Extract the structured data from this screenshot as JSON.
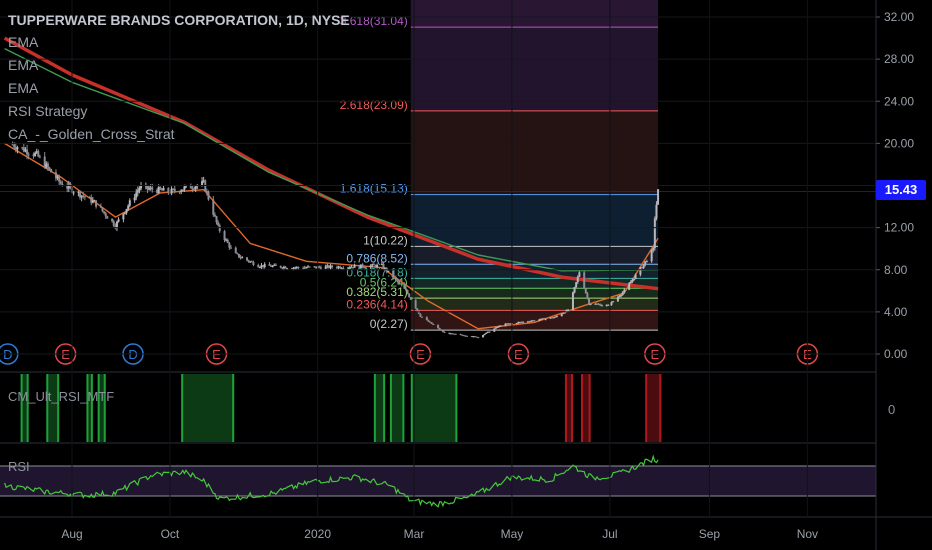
{
  "header": {
    "title": "TUPPERWARE BRANDS CORPORATION, 1D, NYSE",
    "indicators": [
      "EMA",
      "EMA",
      "EMA",
      "RSI Strategy",
      "CA_-_Golden_Cross_Strat"
    ]
  },
  "panes": {
    "oscillator_label": "CM_Ult_RSI_MTF",
    "oscillator_tick": "0",
    "rsi_label": "RSI"
  },
  "last_price": "15.43",
  "colors": {
    "background": "#000000",
    "candles": "#b7b7bd",
    "ema_long": "#c8302a",
    "ema_mid": "#3e9a55",
    "ema_short": "#e0692b",
    "rsi_line": "#46c83c",
    "rsi_band": "#271a3a",
    "hist_green": "#1ea03a",
    "hist_red": "#b2171b",
    "price_badge": "#1a1aff"
  },
  "chart_data": {
    "type": "candlestick",
    "symbol": "TUPPERWARE BRANDS CORPORATION",
    "interval": "1D",
    "exchange": "NYSE",
    "y_ticks": [
      "32.00",
      "28.00",
      "24.00",
      "20.00",
      "16.00",
      "12.00",
      "8.00",
      "4.00",
      "0.00"
    ],
    "ylim": [
      0,
      32
    ],
    "x_ticks": [
      "Aug",
      "Oct",
      "2020",
      "Mar",
      "May",
      "Jul",
      "Sep",
      "Nov"
    ],
    "last_price": 15.43,
    "price_path": [
      {
        "date": "2019-06-25",
        "close": 19.9
      },
      {
        "date": "2019-07-10",
        "close": 18.9
      },
      {
        "date": "2019-07-25",
        "close": 16.2
      },
      {
        "date": "2019-08-15",
        "close": 14.4
      },
      {
        "date": "2019-08-28",
        "close": 12.2
      },
      {
        "date": "2019-09-12",
        "close": 15.8
      },
      {
        "date": "2019-10-01",
        "close": 15.4
      },
      {
        "date": "2019-10-22",
        "close": 16.2
      },
      {
        "date": "2019-10-31",
        "close": 12.0
      },
      {
        "date": "2019-11-10",
        "close": 9.5
      },
      {
        "date": "2019-11-25",
        "close": 8.4
      },
      {
        "date": "2019-12-20",
        "close": 8.2
      },
      {
        "date": "2020-01-20",
        "close": 8.3
      },
      {
        "date": "2020-02-10",
        "close": 8.4
      },
      {
        "date": "2020-02-25",
        "close": 6.0
      },
      {
        "date": "2020-03-05",
        "close": 3.6
      },
      {
        "date": "2020-03-20",
        "close": 2.0
      },
      {
        "date": "2020-04-10",
        "close": 1.6
      },
      {
        "date": "2020-04-25",
        "close": 2.8
      },
      {
        "date": "2020-05-15",
        "close": 3.2
      },
      {
        "date": "2020-05-28",
        "close": 3.5
      },
      {
        "date": "2020-06-05",
        "close": 4.2
      },
      {
        "date": "2020-06-12",
        "close": 7.8
      },
      {
        "date": "2020-06-18",
        "close": 4.8
      },
      {
        "date": "2020-06-30",
        "close": 4.6
      },
      {
        "date": "2020-07-10",
        "close": 6.0
      },
      {
        "date": "2020-07-22",
        "close": 8.5
      },
      {
        "date": "2020-07-28",
        "close": 9.9
      },
      {
        "date": "2020-07-29",
        "close": 13.0
      },
      {
        "date": "2020-07-31",
        "close": 15.43
      }
    ],
    "ema_200": [
      {
        "date": "2019-06-20",
        "value": 30.0
      },
      {
        "date": "2019-08-01",
        "value": 26.5
      },
      {
        "date": "2019-10-10",
        "value": 22.0
      },
      {
        "date": "2019-12-01",
        "value": 17.5
      },
      {
        "date": "2020-02-01",
        "value": 13.0
      },
      {
        "date": "2020-04-10",
        "value": 9.0
      },
      {
        "date": "2020-06-01",
        "value": 7.3
      },
      {
        "date": "2020-07-31",
        "value": 6.2
      }
    ],
    "ema_100": [
      {
        "date": "2019-06-20",
        "value": 29.0
      },
      {
        "date": "2019-08-01",
        "value": 25.8
      },
      {
        "date": "2019-10-10",
        "value": 21.9
      },
      {
        "date": "2019-12-01",
        "value": 17.3
      },
      {
        "date": "2020-02-01",
        "value": 13.2
      },
      {
        "date": "2020-04-10",
        "value": 9.4
      },
      {
        "date": "2020-06-01",
        "value": 7.9
      },
      {
        "date": "2020-07-31",
        "value": 8.0
      }
    ],
    "ema_short": [
      {
        "date": "2019-06-20",
        "value": 20.0
      },
      {
        "date": "2019-07-25",
        "value": 16.8
      },
      {
        "date": "2019-08-28",
        "value": 13.0
      },
      {
        "date": "2019-09-25",
        "value": 15.3
      },
      {
        "date": "2019-10-22",
        "value": 15.6
      },
      {
        "date": "2019-11-20",
        "value": 10.5
      },
      {
        "date": "2019-12-25",
        "value": 8.8
      },
      {
        "date": "2020-02-10",
        "value": 8.2
      },
      {
        "date": "2020-03-10",
        "value": 5.0
      },
      {
        "date": "2020-04-10",
        "value": 2.4
      },
      {
        "date": "2020-05-15",
        "value": 3.0
      },
      {
        "date": "2020-06-15",
        "value": 4.6
      },
      {
        "date": "2020-07-10",
        "value": 5.8
      },
      {
        "date": "2020-07-31",
        "value": 11.0
      }
    ],
    "fibonacci": {
      "levels": [
        {
          "ratio": "0",
          "price": 2.27,
          "label": "0(2.27)",
          "color": "#c8c8c8"
        },
        {
          "ratio": "0.236",
          "price": 4.14,
          "label": "0.236(4.14)",
          "color": "#f25a5a"
        },
        {
          "ratio": "0.382",
          "price": 5.31,
          "label": "0.382(5.31)",
          "color": "#a6d77e"
        },
        {
          "ratio": "0.5",
          "price": 6.24,
          "label": "0.5(6.24)",
          "color": "#68c868"
        },
        {
          "ratio": "0.618",
          "price": 7.18,
          "label": "0.618(7.18)",
          "color": "#3cb5a4"
        },
        {
          "ratio": "0.786",
          "price": 8.52,
          "label": "0.786(8.52)",
          "color": "#84b8f5"
        },
        {
          "ratio": "1",
          "price": 10.22,
          "label": "1(10.22)",
          "color": "#c8c8c8"
        },
        {
          "ratio": "1.618",
          "price": 15.13,
          "label": "1.618(15.13)",
          "color": "#5aa0f5"
        },
        {
          "ratio": "2.618",
          "price": 23.09,
          "label": "2.618(23.09)",
          "color": "#f25a5a"
        },
        {
          "ratio": "3.618",
          "price": 31.04,
          "label": "3.618(31.04)",
          "color": "#b45ac8"
        }
      ],
      "start_date": "2020-02-28",
      "end_date": "2020-07-31"
    },
    "events": [
      {
        "date": "2019-06-22",
        "letter": "D",
        "type": "dividend"
      },
      {
        "date": "2019-07-28",
        "letter": "E",
        "type": "earnings"
      },
      {
        "date": "2019-09-08",
        "letter": "D",
        "type": "dividend"
      },
      {
        "date": "2019-10-30",
        "letter": "E",
        "type": "earnings"
      },
      {
        "date": "2020-03-05",
        "letter": "E",
        "type": "earnings"
      },
      {
        "date": "2020-05-05",
        "letter": "E",
        "type": "earnings"
      },
      {
        "date": "2020-07-29",
        "letter": "E",
        "type": "earnings"
      },
      {
        "date": "2020-11-01",
        "letter": "E",
        "type": "earnings"
      }
    ],
    "oscillator_bars": [
      {
        "start": "2019-06-30",
        "end": "2019-07-05",
        "color": "green"
      },
      {
        "start": "2019-07-16",
        "end": "2019-07-24",
        "color": "green"
      },
      {
        "start": "2019-08-10",
        "end": "2019-08-14",
        "color": "green"
      },
      {
        "start": "2019-08-17",
        "end": "2019-08-22",
        "color": "green"
      },
      {
        "start": "2019-10-08",
        "end": "2019-11-10",
        "color": "green"
      },
      {
        "start": "2020-02-05",
        "end": "2020-02-12",
        "color": "green"
      },
      {
        "start": "2020-02-15",
        "end": "2020-02-24",
        "color": "green"
      },
      {
        "start": "2020-02-28",
        "end": "2020-03-28",
        "color": "green"
      },
      {
        "start": "2020-06-03",
        "end": "2020-06-08",
        "color": "red"
      },
      {
        "start": "2020-06-13",
        "end": "2020-06-19",
        "color": "red"
      },
      {
        "start": "2020-07-23",
        "end": "2020-08-02",
        "color": "red"
      }
    ],
    "rsi": [
      {
        "date": "2019-06-20",
        "value": 44
      },
      {
        "date": "2019-07-15",
        "value": 36
      },
      {
        "date": "2019-08-10",
        "value": 31
      },
      {
        "date": "2019-08-28",
        "value": 34
      },
      {
        "date": "2019-09-20",
        "value": 58
      },
      {
        "date": "2019-10-10",
        "value": 62
      },
      {
        "date": "2019-10-22",
        "value": 50
      },
      {
        "date": "2019-11-01",
        "value": 26
      },
      {
        "date": "2019-12-05",
        "value": 34
      },
      {
        "date": "2019-12-30",
        "value": 50
      },
      {
        "date": "2020-01-25",
        "value": 55
      },
      {
        "date": "2020-02-15",
        "value": 44
      },
      {
        "date": "2020-02-28",
        "value": 24
      },
      {
        "date": "2020-03-15",
        "value": 19
      },
      {
        "date": "2020-04-05",
        "value": 28
      },
      {
        "date": "2020-04-30",
        "value": 55
      },
      {
        "date": "2020-05-25",
        "value": 52
      },
      {
        "date": "2020-06-08",
        "value": 70
      },
      {
        "date": "2020-06-20",
        "value": 54
      },
      {
        "date": "2020-07-05",
        "value": 58
      },
      {
        "date": "2020-07-20",
        "value": 72
      },
      {
        "date": "2020-07-28",
        "value": 80
      },
      {
        "date": "2020-07-31",
        "value": 76
      }
    ],
    "rsi_bands": [
      70,
      30
    ]
  }
}
